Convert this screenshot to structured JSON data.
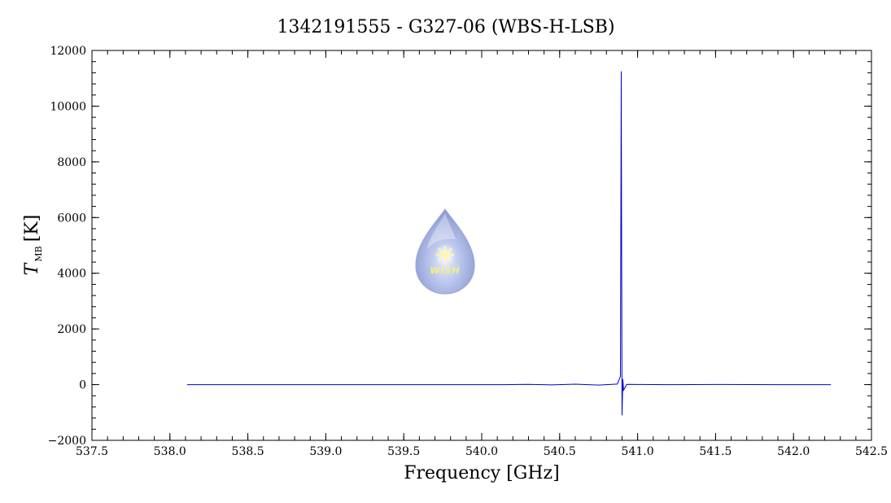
{
  "chart_data": {
    "type": "line",
    "title": "1342191555 - G327-06 (WBS-H-LSB)",
    "xlabel": "Frequency [GHz]",
    "ylabel_main": "T",
    "ylabel_sub": "MB",
    "ylabel_unit": "[K]",
    "xlim": [
      537.5,
      542.5
    ],
    "ylim": [
      -2000,
      12000
    ],
    "x_ticks": [
      537.5,
      538.0,
      538.5,
      539.0,
      539.5,
      540.0,
      540.5,
      541.0,
      541.5,
      542.0,
      542.5
    ],
    "x_tick_labels": [
      "537.5",
      "538.0",
      "538.5",
      "539.0",
      "539.5",
      "540.0",
      "540.5",
      "541.0",
      "541.5",
      "542.0",
      "542.5"
    ],
    "y_ticks": [
      -2000,
      0,
      2000,
      4000,
      6000,
      8000,
      10000,
      12000
    ],
    "y_tick_labels": [
      "−2000",
      "0",
      "2000",
      "4000",
      "6000",
      "8000",
      "10000",
      "12000"
    ],
    "grid": false,
    "series": [
      {
        "color": "#0000cc",
        "x": [
          538.11,
          540.15,
          540.3,
          540.45,
          540.6,
          540.75,
          540.87,
          540.89,
          540.895,
          540.9,
          540.905,
          540.91,
          540.93,
          541.2,
          541.5,
          541.9,
          542.24
        ],
        "y": [
          0,
          0,
          10,
          -10,
          15,
          -15,
          20,
          300,
          11250,
          -1100,
          200,
          -200,
          10,
          0,
          5,
          0,
          0
        ]
      }
    ],
    "logo": {
      "text": "WISH",
      "colors": {
        "drop_top": "#c9d3f0",
        "drop_bottom": "#7f8fcf",
        "star": "#ffffd0"
      }
    }
  }
}
